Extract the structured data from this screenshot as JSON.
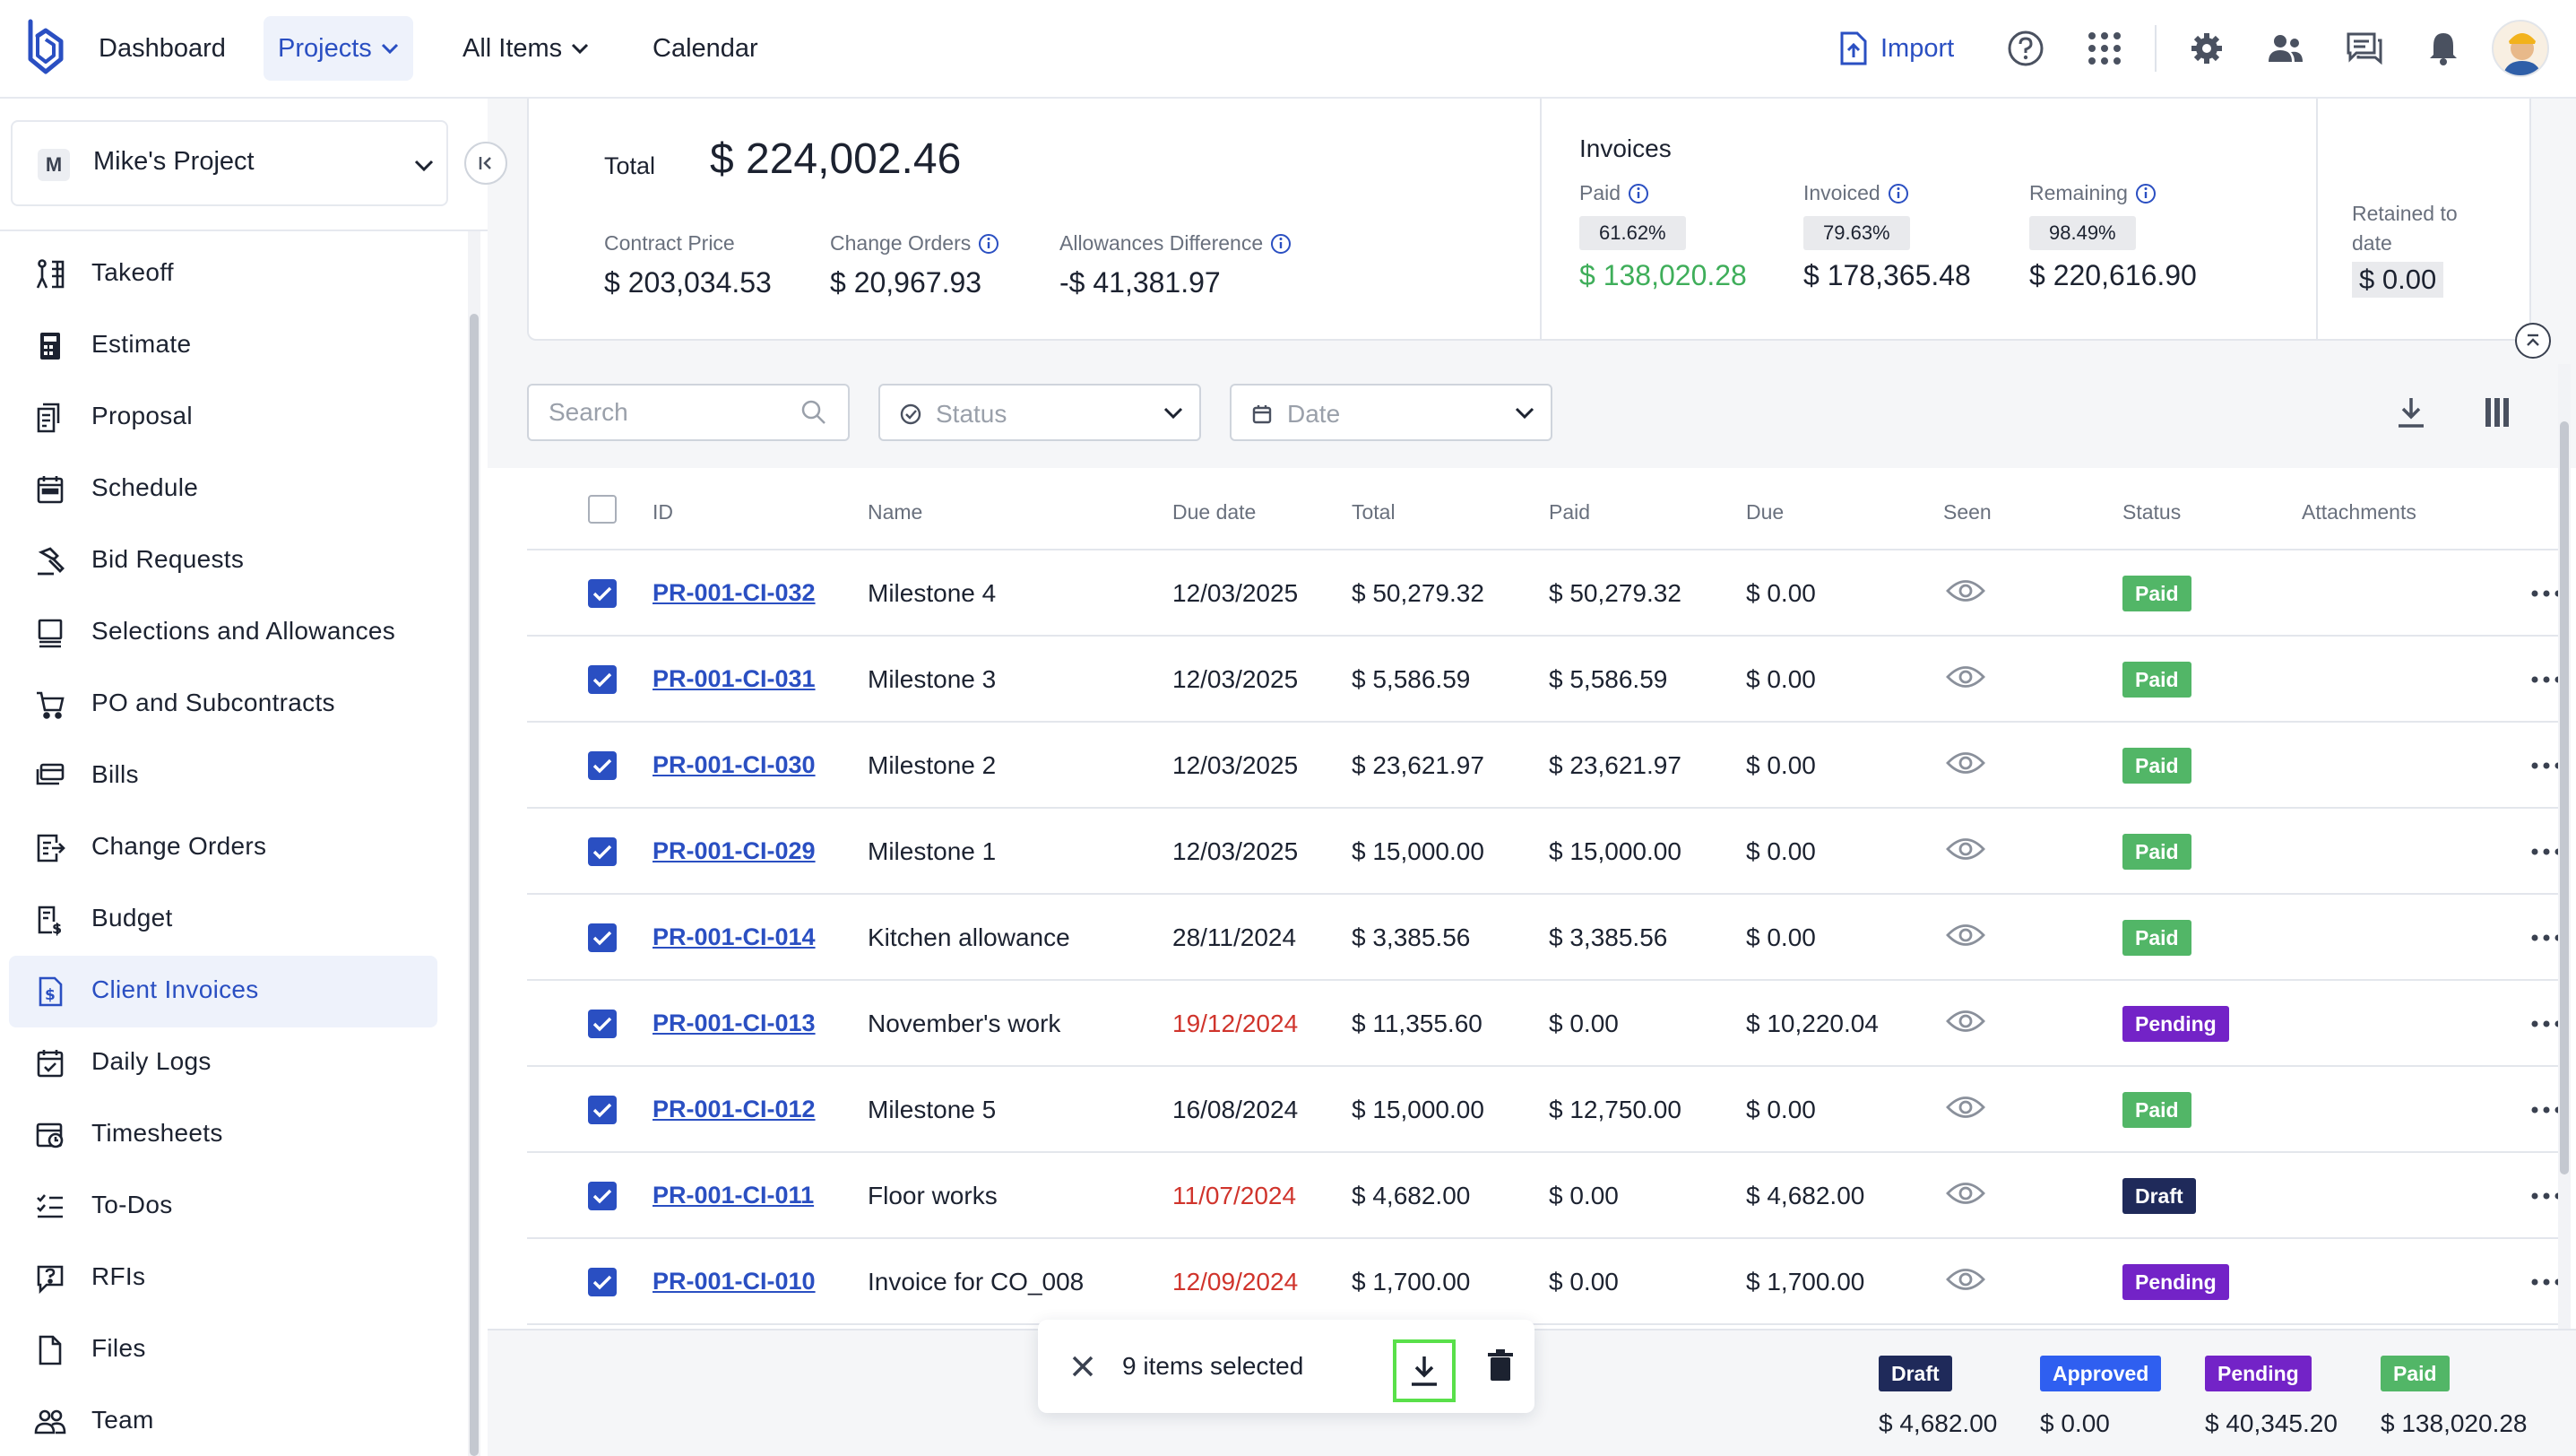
{
  "colors": {
    "accent": "#2a4fc2",
    "paid": "#52b667",
    "pending": "#7323c7",
    "draft": "#1f2a5a",
    "approved": "#2f5ff0",
    "overdue": "#d0342c",
    "highlight": "#59e04a"
  },
  "topnav": {
    "items": [
      {
        "label": "Dashboard"
      },
      {
        "label": "Projects",
        "active": true,
        "has_chevron": true
      },
      {
        "label": "All Items",
        "has_chevron": true
      },
      {
        "label": "Calendar"
      }
    ],
    "import_label": "Import",
    "icons": [
      "help-icon",
      "apps-grid-icon",
      "settings-gear-icon",
      "users-icon",
      "chat-icon",
      "bell-icon",
      "user-avatar"
    ]
  },
  "sidebar": {
    "project_initial": "M",
    "project_name": "Mike's Project",
    "items": [
      {
        "label": "Takeoff",
        "icon": "takeoff-icon"
      },
      {
        "label": "Estimate",
        "icon": "calculator-icon"
      },
      {
        "label": "Proposal",
        "icon": "proposal-icon"
      },
      {
        "label": "Schedule",
        "icon": "calendar-icon"
      },
      {
        "label": "Bid Requests",
        "icon": "hammer-icon"
      },
      {
        "label": "Selections and Allowances",
        "icon": "monitor-icon"
      },
      {
        "label": "PO and Subcontracts",
        "icon": "cart-icon"
      },
      {
        "label": "Bills",
        "icon": "bills-icon"
      },
      {
        "label": "Change Orders",
        "icon": "change-orders-icon"
      },
      {
        "label": "Budget",
        "icon": "budget-icon"
      },
      {
        "label": "Client Invoices",
        "icon": "invoice-icon",
        "active": true
      },
      {
        "label": "Daily Logs",
        "icon": "daily-log-icon"
      },
      {
        "label": "Timesheets",
        "icon": "timesheet-icon"
      },
      {
        "label": "To-Dos",
        "icon": "todo-icon"
      },
      {
        "label": "RFIs",
        "icon": "rfi-icon"
      },
      {
        "label": "Files",
        "icon": "file-icon"
      },
      {
        "label": "Team",
        "icon": "team-icon"
      }
    ]
  },
  "summary": {
    "total_label": "Total",
    "total_value": "$ 224,002.46",
    "contract_price_label": "Contract Price",
    "contract_price_value": "$ 203,034.53",
    "change_orders_label": "Change Orders",
    "change_orders_value": "$ 20,967.93",
    "allowances_label": "Allowances Difference",
    "allowances_value": "-$ 41,381.97",
    "invoices_title": "Invoices",
    "paid_label": "Paid",
    "paid_pct": "61.62%",
    "paid_value": "$ 138,020.28",
    "invoiced_label": "Invoiced",
    "invoiced_pct": "79.63%",
    "invoiced_value": "$ 178,365.48",
    "remaining_label": "Remaining",
    "remaining_pct": "98.49%",
    "remaining_value": "$ 220,616.90",
    "retained_label": "Retained to date",
    "retained_value": "$ 0.00"
  },
  "filters": {
    "search_placeholder": "Search",
    "status_placeholder": "Status",
    "date_placeholder": "Date"
  },
  "table": {
    "headers": {
      "id": "ID",
      "name": "Name",
      "due_date": "Due date",
      "total": "Total",
      "paid": "Paid",
      "due": "Due",
      "seen": "Seen",
      "status": "Status",
      "attachments": "Attachments"
    },
    "rows": [
      {
        "id": "PR-001-CI-032",
        "name": "Milestone 4",
        "due_date": "12/03/2025",
        "overdue": false,
        "total": "$ 50,279.32",
        "paid": "$ 50,279.32",
        "due": "$ 0.00",
        "status": "Paid"
      },
      {
        "id": "PR-001-CI-031",
        "name": "Milestone 3",
        "due_date": "12/03/2025",
        "overdue": false,
        "total": "$ 5,586.59",
        "paid": "$ 5,586.59",
        "due": "$ 0.00",
        "status": "Paid"
      },
      {
        "id": "PR-001-CI-030",
        "name": "Milestone 2",
        "due_date": "12/03/2025",
        "overdue": false,
        "total": "$ 23,621.97",
        "paid": "$ 23,621.97",
        "due": "$ 0.00",
        "status": "Paid"
      },
      {
        "id": "PR-001-CI-029",
        "name": "Milestone 1",
        "due_date": "12/03/2025",
        "overdue": false,
        "total": "$ 15,000.00",
        "paid": "$ 15,000.00",
        "due": "$ 0.00",
        "status": "Paid"
      },
      {
        "id": "PR-001-CI-014",
        "name": "Kitchen allowance",
        "due_date": "28/11/2024",
        "overdue": false,
        "total": "$ 3,385.56",
        "paid": "$ 3,385.56",
        "due": "$ 0.00",
        "status": "Paid"
      },
      {
        "id": "PR-001-CI-013",
        "name": "November's work",
        "due_date": "19/12/2024",
        "overdue": true,
        "total": "$ 11,355.60",
        "paid": "$ 0.00",
        "due": "$ 10,220.04",
        "status": "Pending"
      },
      {
        "id": "PR-001-CI-012",
        "name": "Milestone 5",
        "due_date": "16/08/2024",
        "overdue": false,
        "total": "$ 15,000.00",
        "paid": "$ 12,750.00",
        "due": "$ 0.00",
        "status": "Paid"
      },
      {
        "id": "PR-001-CI-011",
        "name": "Floor works",
        "due_date": "11/07/2024",
        "overdue": true,
        "total": "$ 4,682.00",
        "paid": "$ 0.00",
        "due": "$ 4,682.00",
        "status": "Draft"
      },
      {
        "id": "PR-001-CI-010",
        "name": "Invoice for CO_008",
        "due_date": "12/09/2024",
        "overdue": true,
        "total": "$ 1,700.00",
        "paid": "$ 0.00",
        "due": "$ 1,700.00",
        "status": "Pending"
      }
    ]
  },
  "selection": {
    "text": "9 items selected"
  },
  "legend": [
    {
      "label": "Draft",
      "value": "$ 4,682.00",
      "color": "#1f2a5a"
    },
    {
      "label": "Approved",
      "value": "$ 0.00",
      "color": "#2f5ff0"
    },
    {
      "label": "Pending",
      "value": "$ 40,345.20",
      "color": "#7323c7"
    },
    {
      "label": "Paid",
      "value": "$ 138,020.28",
      "color": "#52b667"
    }
  ]
}
